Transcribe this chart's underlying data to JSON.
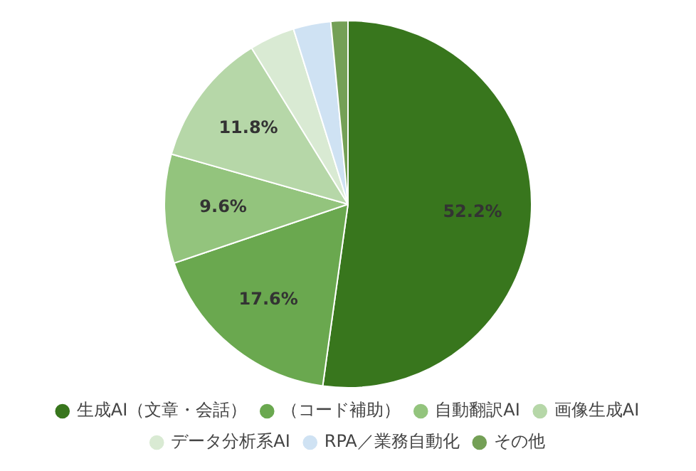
{
  "chart_data": {
    "type": "pie",
    "categories": [
      "生成AI（文章・会話）",
      "（コード補助）",
      "自動翻訳AI",
      "画像生成AI",
      "データ分析系AI",
      "RPA／業務自動化",
      "その他"
    ],
    "values": [
      52.2,
      17.6,
      9.6,
      11.8,
      4.0,
      3.3,
      1.5
    ],
    "colors": [
      "#38761d",
      "#6aa84f",
      "#93c47d",
      "#b6d7a8",
      "#d9ead3",
      "#cfe2f3",
      "#74a056"
    ],
    "value_labels": [
      "52.2%",
      "17.6%",
      "9.6%",
      "11.8%",
      null,
      null,
      null
    ],
    "legend": "bottom"
  }
}
